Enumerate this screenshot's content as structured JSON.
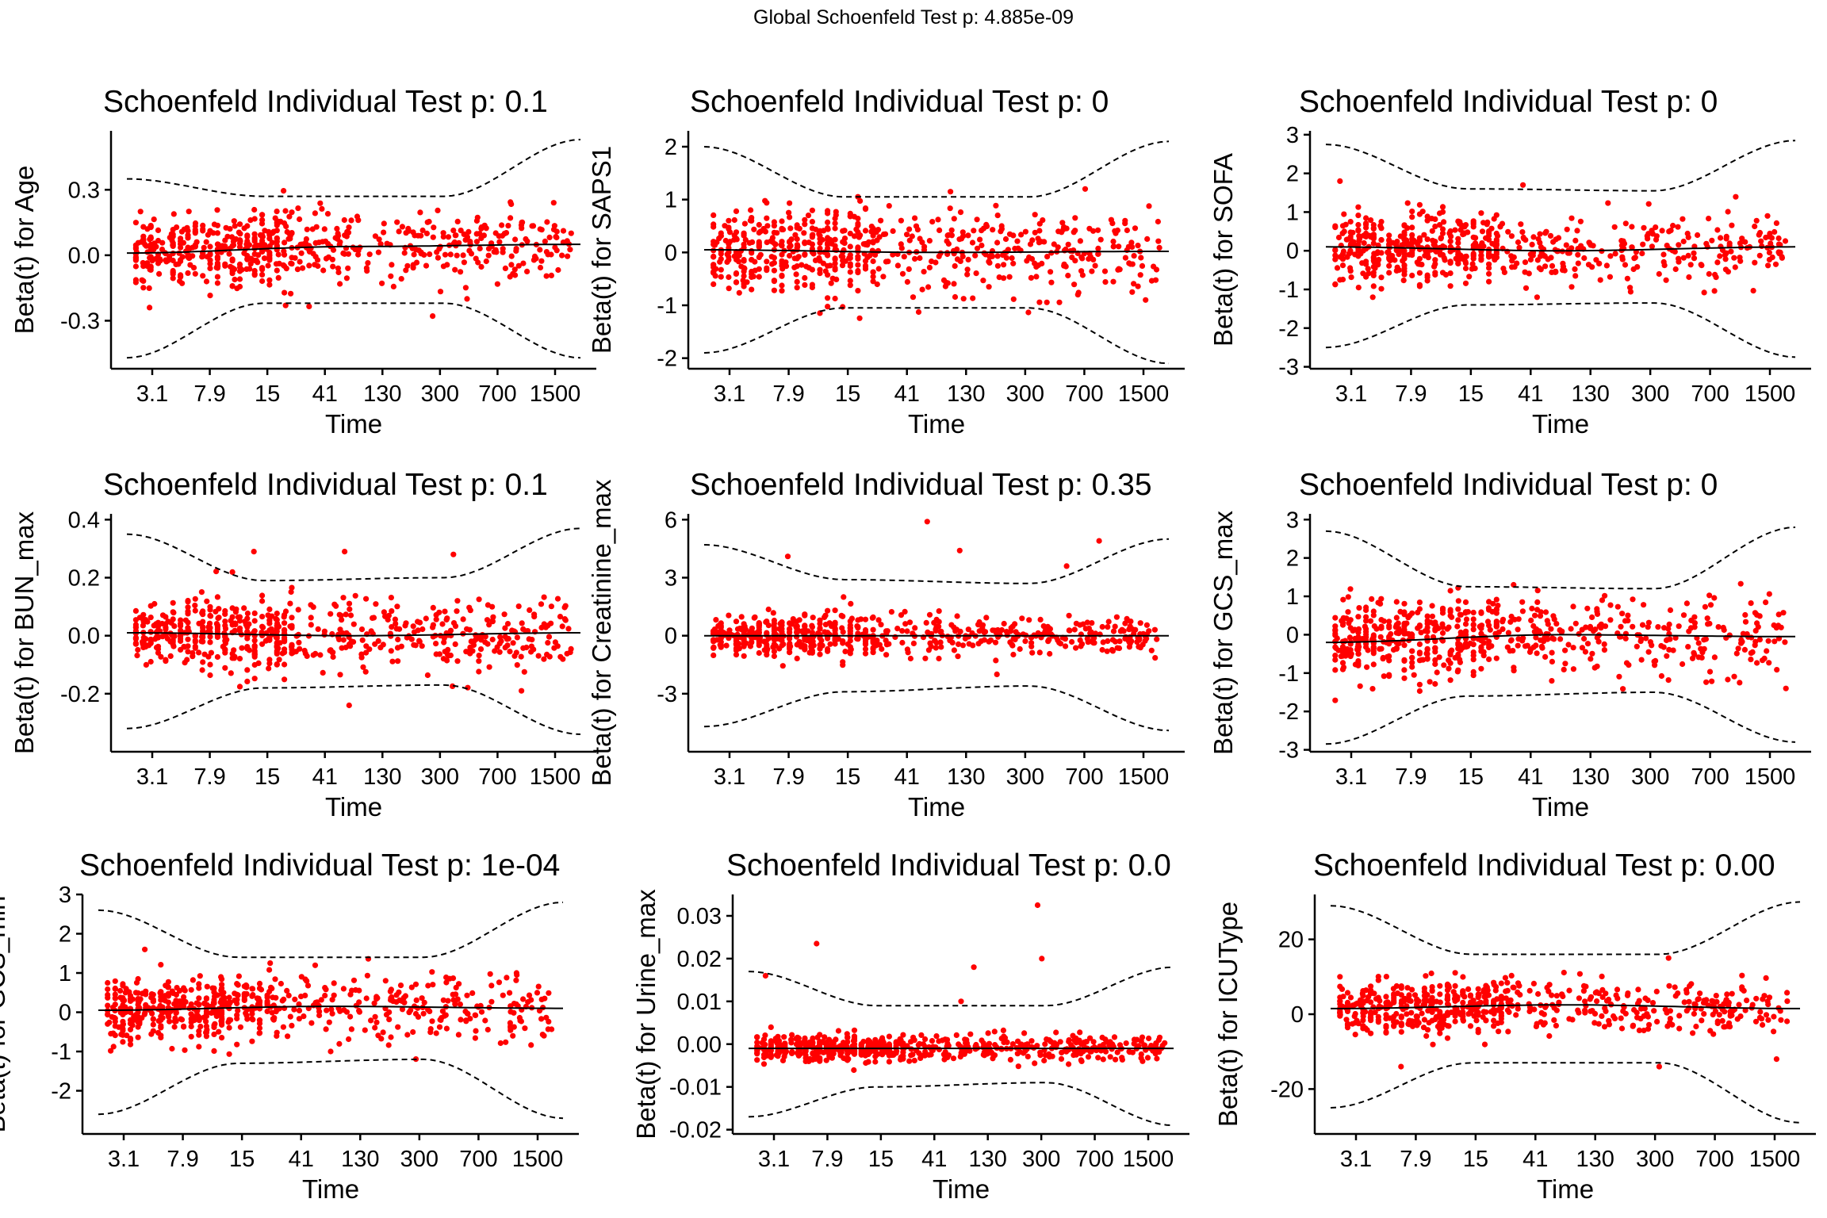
{
  "global_title": "Global Schoenfeld Test p: 4.885e-09",
  "colors": {
    "points": "#ff0000",
    "lines": "#000000",
    "background": "#ffffff"
  },
  "chart_data": [
    {
      "type": "scatter",
      "title": "Schoenfeld Individual Test p: 0.1",
      "xlabel": "Time",
      "ylabel": "Beta(t) for Age",
      "x_scale": "rank-transformed time",
      "xticks": [
        "3.1",
        "7.9",
        "15",
        "41",
        "130",
        "300",
        "700",
        "1500"
      ],
      "yticks": [
        -0.3,
        0.0,
        0.3
      ],
      "ytick_labels": [
        "-0.3",
        "0.0",
        "0.3"
      ],
      "ylim": [
        -0.52,
        0.57
      ],
      "smooth": [
        [
          0,
          0.01
        ],
        [
          0.5,
          0.04
        ],
        [
          1,
          0.05
        ]
      ],
      "band_upper": [
        [
          0,
          0.35
        ],
        [
          0.3,
          0.27
        ],
        [
          0.7,
          0.27
        ],
        [
          1,
          0.53
        ]
      ],
      "band_lower": [
        [
          0,
          -0.47
        ],
        [
          0.3,
          -0.22
        ],
        [
          0.7,
          -0.22
        ],
        [
          1,
          -0.47
        ]
      ],
      "point_spread": 0.08,
      "point_count": 620,
      "outliers": [
        [
          0.05,
          -0.24
        ],
        [
          0.35,
          -0.23
        ],
        [
          0.75,
          -0.2
        ],
        [
          0.03,
          0.2
        ]
      ]
    },
    {
      "type": "scatter",
      "title": "Schoenfeld Individual Test p: 0",
      "xlabel": "Time",
      "ylabel": "Beta(t) for SAPS1",
      "xticks": [
        "3.1",
        "7.9",
        "15",
        "41",
        "130",
        "300",
        "700",
        "1500"
      ],
      "yticks": [
        -2,
        -1,
        0,
        1,
        2
      ],
      "ytick_labels": [
        "-2",
        "-1",
        "0",
        "1",
        "2"
      ],
      "ylim": [
        -2.2,
        2.3
      ],
      "smooth": [
        [
          0,
          0.05
        ],
        [
          0.5,
          0.0
        ],
        [
          1,
          0.02
        ]
      ],
      "band_upper": [
        [
          0,
          2.0
        ],
        [
          0.3,
          1.05
        ],
        [
          0.7,
          1.05
        ],
        [
          1,
          2.1
        ]
      ],
      "band_lower": [
        [
          0,
          -1.9
        ],
        [
          0.3,
          -1.05
        ],
        [
          0.7,
          -1.05
        ],
        [
          1,
          -2.1
        ]
      ],
      "point_spread": 0.4,
      "point_count": 620,
      "outliers": [
        [
          0.53,
          1.15
        ],
        [
          0.82,
          1.2
        ],
        [
          0.95,
          -0.9
        ],
        [
          0.1,
          0.8
        ]
      ]
    },
    {
      "type": "scatter",
      "title": "Schoenfeld Individual Test p: 0",
      "xlabel": "Time",
      "ylabel": "Beta(t) for SOFA",
      "xticks": [
        "3.1",
        "7.9",
        "15",
        "41",
        "130",
        "300",
        "700",
        "1500"
      ],
      "yticks": [
        -3,
        -2,
        -1,
        0,
        1,
        2,
        3
      ],
      "ytick_labels": [
        "-3",
        "-2",
        "-1",
        "0",
        "1",
        "2",
        "3"
      ],
      "ylim": [
        -3.05,
        3.1
      ],
      "smooth": [
        [
          0,
          0.1
        ],
        [
          0.5,
          0.0
        ],
        [
          1,
          0.1
        ]
      ],
      "band_upper": [
        [
          0,
          2.75
        ],
        [
          0.3,
          1.6
        ],
        [
          0.7,
          1.55
        ],
        [
          1,
          2.85
        ]
      ],
      "band_lower": [
        [
          0,
          -2.5
        ],
        [
          0.3,
          -1.4
        ],
        [
          0.7,
          -1.35
        ],
        [
          1,
          -2.75
        ]
      ],
      "point_spread": 0.45,
      "point_count": 620,
      "outliers": [
        [
          0.03,
          1.8
        ],
        [
          0.42,
          1.7
        ],
        [
          0.45,
          -1.2
        ],
        [
          0.1,
          -1.2
        ]
      ]
    },
    {
      "type": "scatter",
      "title": "Schoenfeld Individual Test p: 0.1",
      "xlabel": "Time",
      "ylabel": "Beta(t) for BUN_max",
      "xticks": [
        "3.1",
        "7.9",
        "15",
        "41",
        "130",
        "300",
        "700",
        "1500"
      ],
      "yticks": [
        -0.2,
        0.0,
        0.2,
        0.4
      ],
      "ytick_labels": [
        "-0.2",
        "0.0",
        "0.2",
        "0.4"
      ],
      "ylim": [
        -0.4,
        0.42
      ],
      "smooth": [
        [
          0,
          0.01
        ],
        [
          0.5,
          0.0
        ],
        [
          1,
          0.01
        ]
      ],
      "band_upper": [
        [
          0,
          0.35
        ],
        [
          0.3,
          0.19
        ],
        [
          0.7,
          0.2
        ],
        [
          1,
          0.37
        ]
      ],
      "band_lower": [
        [
          0,
          -0.32
        ],
        [
          0.3,
          -0.18
        ],
        [
          0.7,
          -0.17
        ],
        [
          1,
          -0.34
        ]
      ],
      "point_spread": 0.06,
      "point_count": 620,
      "outliers": [
        [
          0.28,
          0.29
        ],
        [
          0.48,
          0.29
        ],
        [
          0.72,
          0.28
        ],
        [
          0.49,
          -0.24
        ],
        [
          0.87,
          -0.19
        ]
      ]
    },
    {
      "type": "scatter",
      "title": "Schoenfeld Individual Test p: 0.35",
      "xlabel": "Time",
      "ylabel": "Beta(t) for Creatinine_max",
      "xticks": [
        "3.1",
        "7.9",
        "15",
        "41",
        "130",
        "300",
        "700",
        "1500"
      ],
      "yticks": [
        -3,
        0,
        3,
        6
      ],
      "ytick_labels": [
        "-3",
        "0",
        "3",
        "6"
      ],
      "ylim": [
        -6.0,
        6.3
      ],
      "smooth": [
        [
          0,
          0.0
        ],
        [
          0.5,
          0.0
        ],
        [
          1,
          0.0
        ]
      ],
      "band_upper": [
        [
          0,
          4.7
        ],
        [
          0.3,
          2.9
        ],
        [
          0.7,
          2.7
        ],
        [
          1,
          5.0
        ]
      ],
      "band_lower": [
        [
          0,
          -4.7
        ],
        [
          0.3,
          -2.9
        ],
        [
          0.7,
          -2.6
        ],
        [
          1,
          -4.9
        ]
      ],
      "point_spread": 0.5,
      "point_count": 620,
      "outliers": [
        [
          0.48,
          5.9
        ],
        [
          0.55,
          4.4
        ],
        [
          0.85,
          4.9
        ],
        [
          0.18,
          4.1
        ],
        [
          0.78,
          3.6
        ],
        [
          0.3,
          2.0
        ],
        [
          0.63,
          -2.0
        ]
      ]
    },
    {
      "type": "scatter",
      "title": "Schoenfeld Individual Test p: 0",
      "xlabel": "Time",
      "ylabel": "Beta(t) for GCS_max",
      "xticks": [
        "3.1",
        "7.9",
        "15",
        "41",
        "130",
        "300",
        "700",
        "1500"
      ],
      "yticks": [
        -3,
        -2,
        -1,
        0,
        1,
        2,
        3
      ],
      "ytick_labels": [
        "-3",
        "-2",
        "-1",
        "0",
        "1",
        "2",
        "3"
      ],
      "ylim": [
        -3.05,
        3.15
      ],
      "smooth": [
        [
          0,
          -0.2
        ],
        [
          0.5,
          0.0
        ],
        [
          1,
          -0.05
        ]
      ],
      "band_upper": [
        [
          0,
          2.7
        ],
        [
          0.3,
          1.25
        ],
        [
          0.7,
          1.2
        ],
        [
          1,
          2.8
        ]
      ],
      "band_lower": [
        [
          0,
          -2.85
        ],
        [
          0.3,
          -1.6
        ],
        [
          0.7,
          -1.5
        ],
        [
          1,
          -2.8
        ]
      ],
      "point_spread": 0.5,
      "point_count": 620,
      "outliers": [
        [
          0.98,
          -1.4
        ],
        [
          0.2,
          -1.3
        ],
        [
          0.4,
          1.3
        ]
      ]
    },
    {
      "type": "scatter",
      "title": "Schoenfeld Individual Test p: 1e-04",
      "xlabel": "Time",
      "ylabel": "Beta(t) for GCS_min",
      "xticks": [
        "3.1",
        "7.9",
        "15",
        "41",
        "130",
        "300",
        "700",
        "1500"
      ],
      "yticks": [
        -2,
        -1,
        0,
        1,
        2,
        3
      ],
      "ytick_labels": [
        "-2",
        "-1",
        "0",
        "1",
        "2",
        "3"
      ],
      "ylim": [
        -3.1,
        3.0
      ],
      "smooth": [
        [
          0,
          0.05
        ],
        [
          0.5,
          0.15
        ],
        [
          1,
          0.1
        ]
      ],
      "band_upper": [
        [
          0,
          2.6
        ],
        [
          0.3,
          1.4
        ],
        [
          0.7,
          1.4
        ],
        [
          1,
          2.8
        ]
      ],
      "band_lower": [
        [
          0,
          -2.6
        ],
        [
          0.3,
          -1.3
        ],
        [
          0.7,
          -1.2
        ],
        [
          1,
          -2.7
        ]
      ],
      "point_spread": 0.4,
      "point_count": 620,
      "outliers": [
        [
          0.1,
          1.6
        ],
        [
          0.9,
          1.0
        ],
        [
          0.5,
          -1.0
        ]
      ]
    },
    {
      "type": "scatter",
      "title": "Schoenfeld Individual Test p: 0.0",
      "xlabel": "Time",
      "ylabel": "Beta(t) for Urine_max",
      "xticks": [
        "3.1",
        "7.9",
        "15",
        "41",
        "130",
        "300",
        "700",
        "1500"
      ],
      "yticks": [
        -0.02,
        -0.01,
        0.0,
        0.01,
        0.02,
        0.03
      ],
      "ytick_labels": [
        "-0.02",
        "-0.01",
        "0.00",
        "0.01",
        "0.02",
        "0.03"
      ],
      "ylim": [
        -0.021,
        0.035
      ],
      "smooth": [
        [
          0,
          -0.001
        ],
        [
          0.5,
          -0.001
        ],
        [
          1,
          -0.001
        ]
      ],
      "band_upper": [
        [
          0,
          0.017
        ],
        [
          0.3,
          0.009
        ],
        [
          0.7,
          0.009
        ],
        [
          1,
          0.018
        ]
      ],
      "band_lower": [
        [
          0,
          -0.017
        ],
        [
          0.3,
          -0.01
        ],
        [
          0.7,
          -0.009
        ],
        [
          1,
          -0.019
        ]
      ],
      "point_spread": 0.0015,
      "point_count": 620,
      "outliers": [
        [
          0.68,
          0.0325
        ],
        [
          0.16,
          0.0235
        ],
        [
          0.69,
          0.02
        ],
        [
          0.53,
          0.018
        ],
        [
          0.04,
          0.016
        ],
        [
          0.5,
          0.01
        ]
      ]
    },
    {
      "type": "scatter",
      "title": "Schoenfeld Individual Test p: 0.00",
      "xlabel": "Time",
      "ylabel": "Beta(t) for ICUType",
      "xticks": [
        "3.1",
        "7.9",
        "15",
        "41",
        "130",
        "300",
        "700",
        "1500"
      ],
      "yticks": [
        -20,
        0,
        20
      ],
      "ytick_labels": [
        "-20",
        "0",
        "20"
      ],
      "ylim": [
        -32,
        32
      ],
      "smooth": [
        [
          0,
          1.5
        ],
        [
          0.5,
          2.5
        ],
        [
          1,
          1.5
        ]
      ],
      "band_upper": [
        [
          0,
          29
        ],
        [
          0.3,
          16
        ],
        [
          0.7,
          16
        ],
        [
          1,
          30
        ]
      ],
      "band_lower": [
        [
          0,
          -25
        ],
        [
          0.3,
          -13
        ],
        [
          0.7,
          -13
        ],
        [
          1,
          -29
        ]
      ],
      "point_spread": 3.5,
      "point_count": 620,
      "outliers": [
        [
          0.72,
          15
        ],
        [
          0.15,
          -14
        ],
        [
          0.7,
          -14
        ],
        [
          0.95,
          -12
        ]
      ]
    }
  ]
}
